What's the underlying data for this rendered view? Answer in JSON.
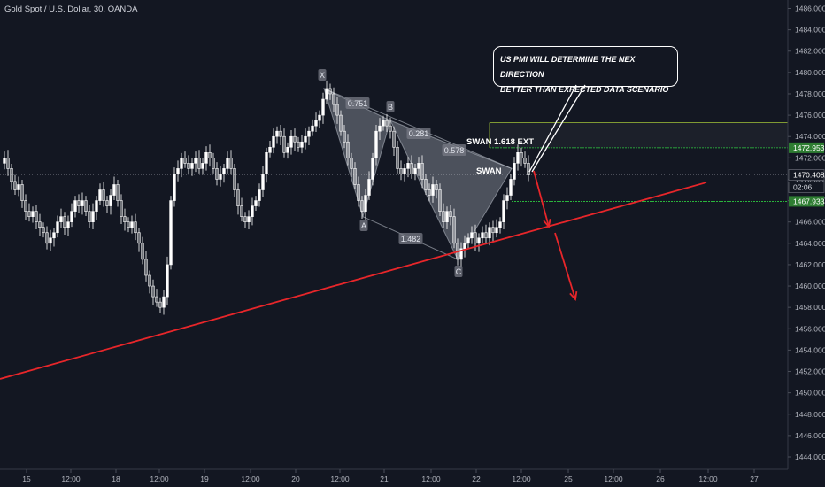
{
  "header": {
    "title": "Gold Spot / U.S. Dollar, 30, OANDA"
  },
  "callout": {
    "line1": "US PMI WILL DETERMINE THE NEX DIRECTION",
    "line2": "BETTER THAN EXPECTED DATA SCENARIO"
  },
  "colors": {
    "background": "#131722",
    "up_candle": "#ffffff",
    "down_candle": "#ffffff",
    "trendline": "#e8262a",
    "arrows": "#e8262a",
    "zone": "#a4c639",
    "green_level": "#2ecc40"
  },
  "chart_data": {
    "type": "candlestick",
    "symbol": "Gold Spot / U.S. Dollar",
    "interval": "30",
    "source": "OANDA",
    "ylim": [
      1443,
      1487
    ],
    "y_ticks": [
      1444,
      1446,
      1448,
      1450,
      1452,
      1454,
      1456,
      1458,
      1460,
      1462,
      1464,
      1466,
      1468,
      1470,
      1472,
      1474,
      1476,
      1478,
      1480,
      1482,
      1484,
      1486
    ],
    "x_ticks": [
      "15",
      "12:00",
      "18",
      "12:00",
      "19",
      "12:00",
      "20",
      "12:00",
      "21",
      "12:00",
      "22",
      "12:00",
      "25",
      "12:00",
      "26",
      "12:00",
      "27"
    ],
    "price_labels": [
      {
        "label": "1472.953",
        "value": 1472.95
      },
      {
        "label": "1470.408",
        "value": 1470.41
      },
      {
        "label": "02:06",
        "value": 1469.0
      },
      {
        "label": "1467.933",
        "value": 1467.93
      }
    ],
    "price_path": [
      [
        0,
        1471.5
      ],
      [
        4,
        1472.0
      ],
      [
        8,
        1471.0
      ],
      [
        12,
        1469.8
      ],
      [
        16,
        1469.0
      ],
      [
        20,
        1469.5
      ],
      [
        24,
        1468.0
      ],
      [
        28,
        1467.0
      ],
      [
        32,
        1466.5
      ],
      [
        36,
        1467.0
      ],
      [
        40,
        1466.0
      ],
      [
        44,
        1465.5
      ],
      [
        48,
        1465.0
      ],
      [
        52,
        1464.0
      ],
      [
        56,
        1464.5
      ],
      [
        60,
        1465.0
      ],
      [
        64,
        1466.0
      ],
      [
        68,
        1466.5
      ],
      [
        72,
        1465.5
      ],
      [
        76,
        1466.0
      ],
      [
        80,
        1467.0
      ],
      [
        84,
        1468.0
      ],
      [
        88,
        1467.5
      ],
      [
        92,
        1468.0
      ],
      [
        96,
        1467.0
      ],
      [
        100,
        1466.0
      ],
      [
        104,
        1467.0
      ],
      [
        108,
        1468.0
      ],
      [
        112,
        1469.0
      ],
      [
        116,
        1468.0
      ],
      [
        120,
        1467.5
      ],
      [
        124,
        1468.5
      ],
      [
        128,
        1469.5
      ],
      [
        132,
        1468.0
      ],
      [
        136,
        1466.5
      ],
      [
        140,
        1466.0
      ],
      [
        144,
        1465.5
      ],
      [
        148,
        1466.0
      ],
      [
        152,
        1465.0
      ],
      [
        156,
        1464.0
      ],
      [
        160,
        1462.5
      ],
      [
        164,
        1461.0
      ],
      [
        168,
        1460.0
      ],
      [
        172,
        1459.0
      ],
      [
        176,
        1458.5
      ],
      [
        180,
        1458.0
      ],
      [
        184,
        1459.0
      ],
      [
        188,
        1462.0
      ],
      [
        192,
        1468.0
      ],
      [
        196,
        1470.5
      ],
      [
        200,
        1471.0
      ],
      [
        204,
        1472.0
      ],
      [
        208,
        1471.5
      ],
      [
        212,
        1471.0
      ],
      [
        216,
        1471.5
      ],
      [
        220,
        1472.0
      ],
      [
        224,
        1471.0
      ],
      [
        228,
        1471.5
      ],
      [
        232,
        1472.5
      ],
      [
        236,
        1472.0
      ],
      [
        240,
        1471.0
      ],
      [
        244,
        1470.0
      ],
      [
        248,
        1470.5
      ],
      [
        252,
        1471.0
      ],
      [
        256,
        1472.0
      ],
      [
        260,
        1471.0
      ],
      [
        264,
        1469.0
      ],
      [
        268,
        1467.5
      ],
      [
        272,
        1466.5
      ],
      [
        276,
        1466.0
      ],
      [
        280,
        1466.5
      ],
      [
        284,
        1467.5
      ],
      [
        288,
        1468.0
      ],
      [
        292,
        1469.0
      ],
      [
        296,
        1470.5
      ],
      [
        300,
        1472.5
      ],
      [
        304,
        1473.0
      ],
      [
        308,
        1474.0
      ],
      [
        312,
        1474.5
      ],
      [
        316,
        1474.0
      ],
      [
        320,
        1472.5
      ],
      [
        324,
        1473.0
      ],
      [
        328,
        1474.0
      ],
      [
        332,
        1473.5
      ],
      [
        336,
        1473.0
      ],
      [
        340,
        1473.5
      ],
      [
        344,
        1474.0
      ],
      [
        348,
        1474.5
      ],
      [
        352,
        1475.0
      ],
      [
        356,
        1475.5
      ],
      [
        360,
        1476.0
      ],
      [
        364,
        1477.5
      ],
      [
        368,
        1478.5
      ],
      [
        372,
        1478.0
      ],
      [
        376,
        1477.0
      ],
      [
        380,
        1476.0
      ],
      [
        384,
        1474.5
      ],
      [
        388,
        1473.5
      ],
      [
        392,
        1472.0
      ],
      [
        396,
        1471.0
      ],
      [
        400,
        1469.5
      ],
      [
        404,
        1468.0
      ],
      [
        408,
        1467.0
      ],
      [
        412,
        1468.5
      ],
      [
        416,
        1470.0
      ],
      [
        420,
        1472.0
      ],
      [
        424,
        1474.5
      ],
      [
        428,
        1475.0
      ],
      [
        432,
        1475.5
      ],
      [
        436,
        1475.0
      ],
      [
        440,
        1474.5
      ],
      [
        444,
        1473.0
      ],
      [
        448,
        1471.0
      ],
      [
        452,
        1470.5
      ],
      [
        456,
        1471.0
      ],
      [
        460,
        1471.5
      ],
      [
        464,
        1470.5
      ],
      [
        468,
        1471.0
      ],
      [
        472,
        1471.5
      ],
      [
        476,
        1470.0
      ],
      [
        480,
        1469.0
      ],
      [
        484,
        1468.5
      ],
      [
        488,
        1469.5
      ],
      [
        492,
        1469.0
      ],
      [
        496,
        1467.0
      ],
      [
        500,
        1466.0
      ],
      [
        504,
        1467.0
      ],
      [
        508,
        1466.5
      ],
      [
        512,
        1464.0
      ],
      [
        516,
        1462.5
      ],
      [
        520,
        1463.5
      ],
      [
        524,
        1464.0
      ],
      [
        528,
        1464.5
      ],
      [
        532,
        1465.0
      ],
      [
        536,
        1464.0
      ],
      [
        540,
        1464.5
      ],
      [
        544,
        1465.0
      ],
      [
        548,
        1464.5
      ],
      [
        552,
        1465.5
      ],
      [
        556,
        1465.0
      ],
      [
        560,
        1465.5
      ],
      [
        564,
        1466.0
      ],
      [
        568,
        1468.0
      ],
      [
        572,
        1468.5
      ],
      [
        576,
        1470.0
      ],
      [
        580,
        1471.5
      ],
      [
        584,
        1472.5
      ],
      [
        588,
        1472.0
      ],
      [
        592,
        1471.5
      ],
      [
        596,
        1470.4
      ]
    ],
    "pattern": {
      "name": "SWAN",
      "points": [
        {
          "label": "X",
          "value": 1478.5
        },
        {
          "label": "A",
          "value": 1466.5
        },
        {
          "label": "B",
          "value": 1475.5
        },
        {
          "label": "C",
          "value": 1462.5
        }
      ],
      "ratios": [
        "0.751",
        "0.281",
        "0.578",
        "1.482"
      ],
      "extension_label": "SWAN 1.618 EXT",
      "swan_label": "SWAN"
    },
    "zone": {
      "top": 1475.3,
      "bottom": 1472.95
    },
    "levels": [
      1472.95,
      1470.41,
      1467.93
    ],
    "trendline": {
      "from": 1451.3,
      "to": 1469.7
    },
    "projection_arrows": 2
  }
}
